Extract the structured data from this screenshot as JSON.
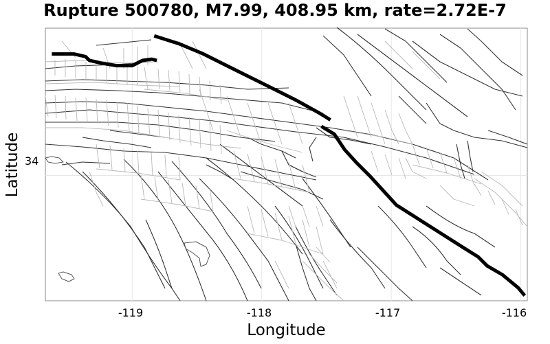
{
  "title": "Rupture 500780, M7.99, 408.95 km, rate=2.72E-7",
  "chart_data": {
    "type": "map",
    "title": "Rupture 500780, M7.99, 408.95 km, rate=2.72E-7",
    "xlabel": "Longitude",
    "ylabel": "Latitude",
    "x_ticks": [
      {
        "value": -119,
        "label": "-119"
      },
      {
        "value": -118,
        "label": "-118"
      },
      {
        "value": -117,
        "label": "-117"
      },
      {
        "value": -116,
        "label": "-116"
      }
    ],
    "y_ticks": [
      {
        "value": 34,
        "label": "34"
      }
    ],
    "xlim": [
      -119.67,
      -115.95
    ],
    "ylim": [
      33.03,
      35.14
    ],
    "grid": true,
    "rupture_traces": [
      [
        [
          -119.62,
          34.94
        ],
        [
          -119.45,
          34.94
        ],
        [
          -119.36,
          34.92
        ],
        [
          -119.33,
          34.89
        ],
        [
          -119.24,
          34.87
        ],
        [
          -119.12,
          34.85
        ],
        [
          -119.0,
          34.85
        ],
        [
          -118.92,
          34.89
        ],
        [
          -118.85,
          34.9
        ],
        [
          -118.81,
          34.89
        ]
      ],
      [
        [
          -118.83,
          35.08
        ],
        [
          -118.64,
          35.02
        ],
        [
          -118.45,
          34.94
        ],
        [
          -118.27,
          34.85
        ],
        [
          -118.09,
          34.76
        ],
        [
          -117.91,
          34.67
        ],
        [
          -117.73,
          34.58
        ],
        [
          -117.55,
          34.48
        ],
        [
          -117.47,
          34.43
        ]
      ],
      [
        [
          -117.54,
          34.38
        ],
        [
          -117.44,
          34.32
        ],
        [
          -117.36,
          34.2
        ],
        [
          -117.27,
          34.1
        ],
        [
          -117.16,
          33.99
        ],
        [
          -117.06,
          33.88
        ],
        [
          -116.96,
          33.77
        ],
        [
          -116.85,
          33.7
        ],
        [
          -116.74,
          33.63
        ],
        [
          -116.63,
          33.56
        ],
        [
          -116.52,
          33.49
        ],
        [
          -116.41,
          33.42
        ],
        [
          -116.33,
          33.37
        ],
        [
          -116.26,
          33.3
        ],
        [
          -116.14,
          33.23
        ],
        [
          -116.02,
          33.13
        ],
        [
          -115.97,
          33.07
        ]
      ]
    ]
  }
}
